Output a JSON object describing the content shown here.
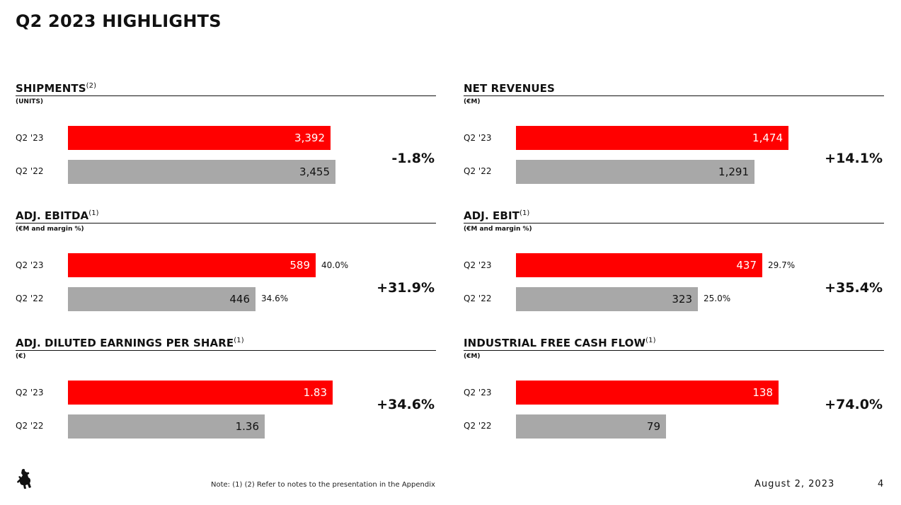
{
  "page_title": "Q2 2023 HIGHLIGHTS",
  "footer": {
    "note": "Note: (1) (2) Refer to notes to the presentation in the Appendix",
    "date": "August 2, 2023",
    "page_number": "4"
  },
  "logo": {
    "icon": "prancing-horse-icon"
  },
  "colors": {
    "current": "#ff0000",
    "prior": "#a8a8a8",
    "text": "#111111"
  },
  "chart_data": [
    {
      "type": "bar",
      "orientation": "horizontal",
      "title": "SHIPMENTS",
      "title_note": "(2)",
      "unit": "(UNITS)",
      "categories": [
        "Q2 '23",
        "Q2 '22"
      ],
      "values": [
        3392,
        3455
      ],
      "value_labels": [
        "3,392",
        "3,455"
      ],
      "change": "-1.8%",
      "xlim": [
        0,
        4300
      ]
    },
    {
      "type": "bar",
      "orientation": "horizontal",
      "title": "NET REVENUES",
      "title_note": "",
      "unit": "(€M)",
      "categories": [
        "Q2 '23",
        "Q2 '22"
      ],
      "values": [
        1474,
        1291
      ],
      "value_labels": [
        "1,474",
        "1,291"
      ],
      "change": "+14.1%",
      "xlim": [
        0,
        1800
      ]
    },
    {
      "type": "bar",
      "orientation": "horizontal",
      "title": "ADJ. EBITDA",
      "title_note": "(1)",
      "unit": "(€M and margin %)",
      "categories": [
        "Q2 '23",
        "Q2 '22"
      ],
      "values": [
        589,
        446
      ],
      "value_labels": [
        "589",
        "446"
      ],
      "margins": [
        "40.0%",
        "34.6%"
      ],
      "change": "+31.9%",
      "xlim": [
        0,
        790
      ]
    },
    {
      "type": "bar",
      "orientation": "horizontal",
      "title": "ADJ. EBIT",
      "title_note": "(1)",
      "unit": "(€M and margin %)",
      "categories": [
        "Q2 '23",
        "Q2 '22"
      ],
      "values": [
        437,
        323
      ],
      "value_labels": [
        "437",
        "323"
      ],
      "margins": [
        "29.7%",
        "25.0%"
      ],
      "change": "+35.4%",
      "xlim": [
        0,
        590
      ]
    },
    {
      "type": "bar",
      "orientation": "horizontal",
      "title": "ADJ. DILUTED EARNINGS PER SHARE",
      "title_note": "(1)",
      "unit": "(€)",
      "categories": [
        "Q2 '23",
        "Q2 '22"
      ],
      "values": [
        1.83,
        1.36
      ],
      "value_labels": [
        "1.83",
        "1.36"
      ],
      "change": "+34.6%",
      "xlim": [
        0,
        2.3
      ]
    },
    {
      "type": "bar",
      "orientation": "horizontal",
      "title": "INDUSTRIAL FREE CASH FLOW",
      "title_note": "(1)",
      "unit": "(€M)",
      "categories": [
        "Q2 '23",
        "Q2 '22"
      ],
      "values": [
        138,
        79
      ],
      "value_labels": [
        "138",
        "79"
      ],
      "change": "+74.0%",
      "xlim": [
        0,
        175
      ]
    }
  ]
}
